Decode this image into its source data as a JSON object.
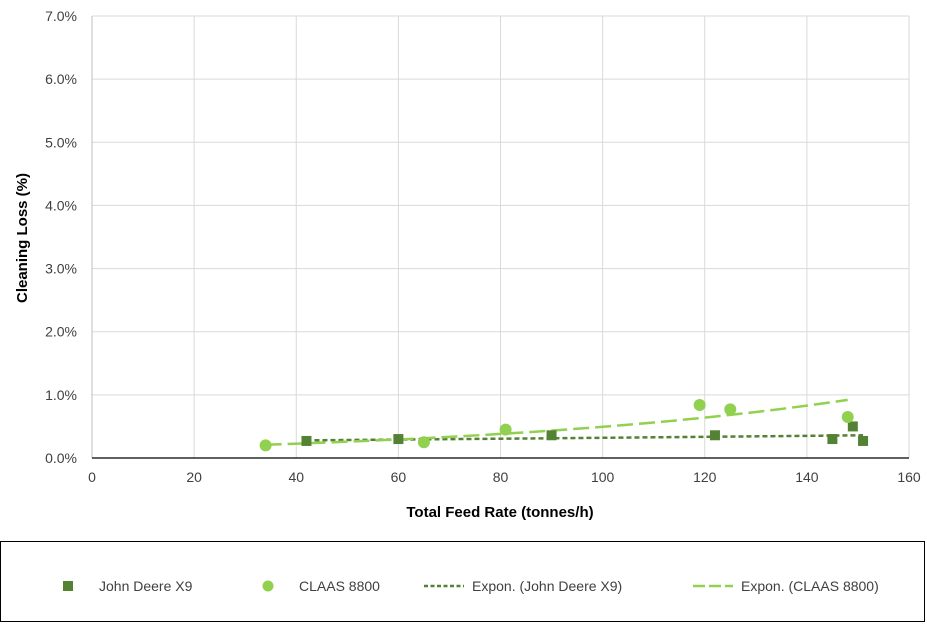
{
  "chart_data": {
    "type": "scatter",
    "xlabel": "Total Feed Rate (tonnes/h)",
    "ylabel": "Cleaning Loss (%)",
    "xlim": [
      0,
      160
    ],
    "ylim": [
      0,
      7
    ],
    "x_ticks": [
      "0",
      "20",
      "40",
      "60",
      "80",
      "100",
      "120",
      "140",
      "160"
    ],
    "y_ticks": [
      "0.0%",
      "1.0%",
      "2.0%",
      "3.0%",
      "4.0%",
      "5.0%",
      "6.0%",
      "7.0%"
    ],
    "grid": true,
    "legend_position": "bottom",
    "series": [
      {
        "name": "John Deere X9",
        "marker": "square",
        "color": "#548235",
        "points": [
          [
            42,
            0.27
          ],
          [
            60,
            0.3
          ],
          [
            90,
            0.36
          ],
          [
            122,
            0.36
          ],
          [
            145,
            0.3
          ],
          [
            149,
            0.5
          ],
          [
            151,
            0.27
          ]
        ]
      },
      {
        "name": "CLAAS 8800",
        "marker": "circle",
        "color": "#92D050",
        "points": [
          [
            34,
            0.2
          ],
          [
            65,
            0.25
          ],
          [
            81,
            0.45
          ],
          [
            119,
            0.84
          ],
          [
            125,
            0.77
          ],
          [
            148,
            0.65
          ]
        ]
      }
    ],
    "trendlines": [
      {
        "name": "Expon. (John Deere X9)",
        "type": "exponential",
        "style": "dashed",
        "color": "#548235",
        "x_range": [
          42,
          151
        ],
        "y_range": [
          0.28,
          0.36
        ]
      },
      {
        "name": "Expon. (CLAAS 8800)",
        "type": "exponential",
        "style": "long-dashed",
        "color": "#92D050",
        "x_range": [
          34,
          148
        ],
        "y_range": [
          0.21,
          0.92
        ]
      }
    ]
  }
}
